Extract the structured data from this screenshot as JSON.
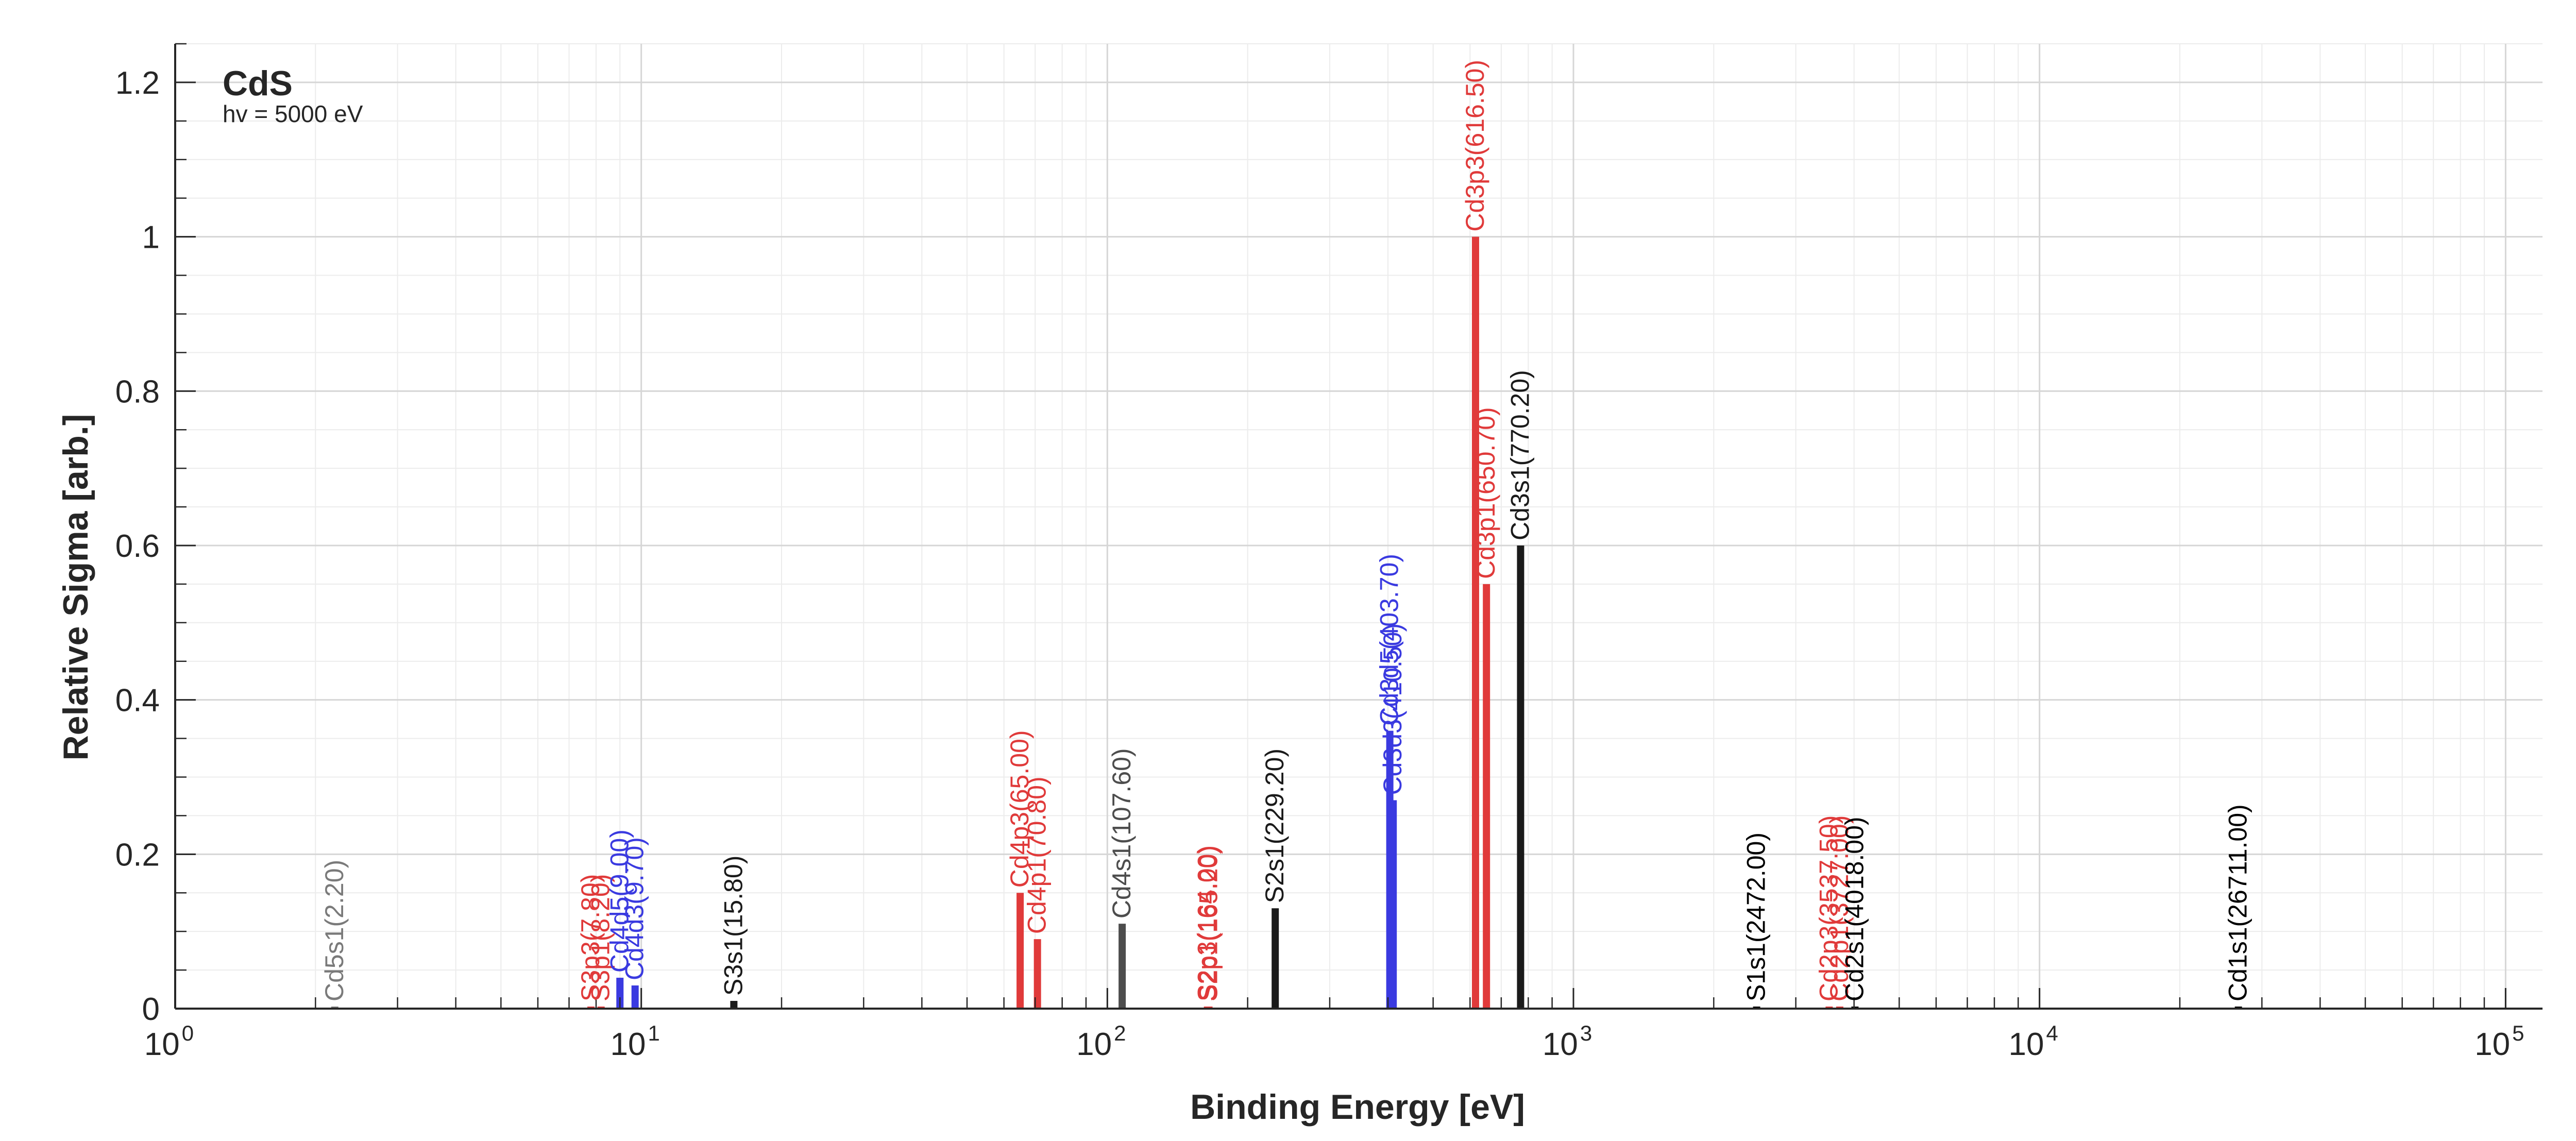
{
  "chart_data": {
    "type": "bar",
    "title": "CdS",
    "subtitle": "hv = 5000 eV",
    "xlabel": "Binding Energy [eV]",
    "ylabel": "Relative Sigma [arb.]",
    "xscale": "log",
    "xlim": [
      1,
      120000
    ],
    "ylim": [
      0,
      1.25
    ],
    "grid": true,
    "x_ticks": [
      {
        "base": "10",
        "exp": "0"
      },
      {
        "base": "10",
        "exp": "1"
      },
      {
        "base": "10",
        "exp": "2"
      },
      {
        "base": "10",
        "exp": "3"
      },
      {
        "base": "10",
        "exp": "4"
      },
      {
        "base": "10",
        "exp": "5"
      }
    ],
    "y_ticks": [
      "0",
      "0.2",
      "0.4",
      "0.6",
      "0.8",
      "1",
      "1.2"
    ],
    "colors": {
      "s": "#4d4d4d",
      "s_core": "#1a1a1a",
      "p": "#e03a3a",
      "d": "#3a3ae0"
    },
    "peaks": [
      {
        "label": "Cd5s1(2.20)",
        "x": 2.2,
        "y": 0.0,
        "color": "#7a7a7a"
      },
      {
        "label": "S3p3(7.80)",
        "x": 7.8,
        "y": 0.0,
        "color": "#e03a3a"
      },
      {
        "label": "S3p1(8.20)",
        "x": 8.2,
        "y": 0.0,
        "color": "#e03a3a"
      },
      {
        "label": "Cd4d5(9.00)",
        "x": 9.0,
        "y": 0.04,
        "color": "#3a3ae0"
      },
      {
        "label": "Cd4d3(9.70)",
        "x": 9.7,
        "y": 0.03,
        "color": "#3a3ae0"
      },
      {
        "label": "S3s1(15.80)",
        "x": 15.8,
        "y": 0.01,
        "color": "#1a1a1a"
      },
      {
        "label": "Cd4p3(65.00)",
        "x": 65.0,
        "y": 0.15,
        "color": "#e03a3a"
      },
      {
        "label": "Cd4p1(70.80)",
        "x": 70.8,
        "y": 0.09,
        "color": "#e03a3a"
      },
      {
        "label": "Cd4s1(107.60)",
        "x": 107.6,
        "y": 0.11,
        "color": "#4d4d4d"
      },
      {
        "label": "S2p3(164.00)",
        "x": 164.0,
        "y": 0.0,
        "color": "#e03a3a"
      },
      {
        "label": "S2p1(165.20)",
        "x": 165.2,
        "y": 0.0,
        "color": "#e03a3a"
      },
      {
        "label": "S2s1(229.20)",
        "x": 229.2,
        "y": 0.13,
        "color": "#1a1a1a"
      },
      {
        "label": "Cd3d5(403.70)",
        "x": 403.7,
        "y": 0.36,
        "color": "#3a3ae0"
      },
      {
        "label": "Cd3d3(410.50)",
        "x": 410.5,
        "y": 0.27,
        "color": "#3a3ae0"
      },
      {
        "label": "Cd3p3(616.50)",
        "x": 616.5,
        "y": 1.0,
        "color": "#e03a3a"
      },
      {
        "label": "Cd3p1(650.70)",
        "x": 650.7,
        "y": 0.55,
        "color": "#e03a3a"
      },
      {
        "label": "Cd3s1(770.20)",
        "x": 770.2,
        "y": 0.6,
        "color": "#1a1a1a"
      },
      {
        "label": "S1s1(2472.00)",
        "x": 2472.0,
        "y": 0.0,
        "color": "#000000"
      },
      {
        "label": "Cd2p3(3537.50)",
        "x": 3537.5,
        "y": 0.0,
        "color": "#e03a3a"
      },
      {
        "label": "Cd2p1(3727.00)",
        "x": 3727.0,
        "y": 0.0,
        "color": "#e03a3a"
      },
      {
        "label": "Cd2s1(4018.00)",
        "x": 4018.0,
        "y": 0.0,
        "color": "#000000"
      },
      {
        "label": "Cd1s1(26711.00)",
        "x": 26711.0,
        "y": 0.0,
        "color": "#000000"
      }
    ]
  }
}
